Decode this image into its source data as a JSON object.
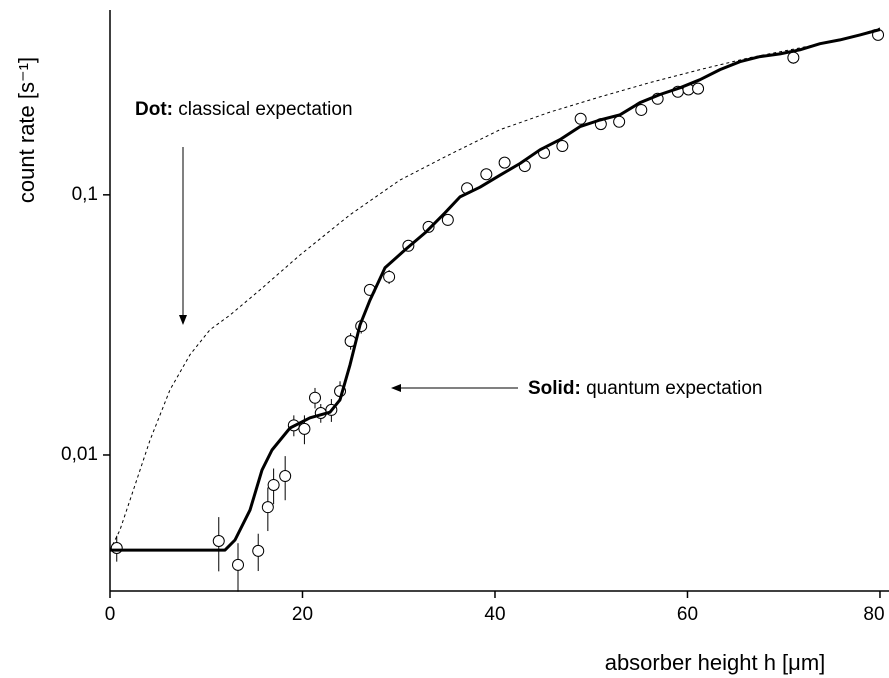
{
  "chart_data": {
    "type": "scatter",
    "xlabel": "absorber height h [μm]",
    "ylabel": "count rate [s⁻¹]",
    "yscale": "log",
    "xlim": [
      0,
      81
    ],
    "ylim": [
      0.003,
      0.5
    ],
    "xticks": [
      0,
      20,
      40,
      60,
      80
    ],
    "yticks": [
      {
        "value": 0.01,
        "label": "0,01"
      },
      {
        "value": 0.1,
        "label": "0,1"
      }
    ],
    "annotations": [
      {
        "bold": "Dot:",
        "text": "classical expectation"
      },
      {
        "bold": "Solid:",
        "text": "quantum expectation"
      }
    ],
    "series": [
      {
        "kind": "points",
        "color": "#000000",
        "x": [
          0.7,
          11.3,
          13.3,
          15.4,
          16.4,
          17.0,
          18.2,
          19.1,
          20.2,
          21.3,
          21.9,
          23.0,
          23.9,
          25.0,
          26.1,
          27.0,
          29.0,
          31.0,
          33.1,
          35.1,
          37.1,
          39.1,
          41.0,
          43.1,
          45.1,
          47.0,
          48.9,
          51.0,
          52.9,
          55.2,
          56.9,
          59.0,
          60.1,
          61.1,
          71.0,
          79.8
        ],
        "values": [
          0.00439,
          0.00467,
          0.00378,
          0.00428,
          0.0063,
          0.00767,
          0.0083,
          0.013,
          0.0126,
          0.0166,
          0.0145,
          0.0149,
          0.0176,
          0.0274,
          0.0313,
          0.0431,
          0.0484,
          0.0637,
          0.0753,
          0.0801,
          0.106,
          0.12,
          0.133,
          0.129,
          0.145,
          0.154,
          0.196,
          0.187,
          0.191,
          0.212,
          0.234,
          0.249,
          0.254,
          0.256,
          0.337,
          0.412
        ],
        "errors": [
          0.0005,
          0.0011,
          0.0008,
          0.0007,
          0.0012,
          0.0012,
          0.0016,
          0.0012,
          0.0016,
          0.0015,
          0.0012,
          0.0015,
          0.0016,
          0.002,
          0.002,
          0.002,
          0.003,
          0.003,
          0.003,
          0.004,
          0.004,
          0.004,
          0.005,
          0.005,
          0.006,
          0.006,
          0.007,
          0.008,
          0.009,
          0.01,
          0.01,
          0.012,
          0.012,
          0.013,
          0.018,
          0.02
        ]
      },
      {
        "kind": "solid",
        "color": "#000000",
        "x": [
          0,
          11.95,
          12.99,
          14.55,
          15.79,
          16.83,
          18.7,
          20.78,
          22.86,
          23.9,
          24.94,
          25.97,
          27.01,
          28.57,
          30.65,
          32.73,
          34.81,
          36.36,
          38.44,
          40.52,
          42.6,
          44.68,
          46.75,
          48.83,
          50.91,
          52.99,
          55.06,
          57.14,
          59.22,
          61.3,
          63.38,
          65.45,
          67.53,
          69.61,
          71.69,
          73.77,
          75.84,
          77.92,
          80
        ],
        "values": [
          0.00431,
          0.00431,
          0.00471,
          0.00614,
          0.00875,
          0.01045,
          0.0127,
          0.0139,
          0.0146,
          0.0163,
          0.0222,
          0.0316,
          0.0394,
          0.0524,
          0.0614,
          0.0714,
          0.0853,
          0.0982,
          0.107,
          0.119,
          0.132,
          0.149,
          0.163,
          0.183,
          0.194,
          0.203,
          0.226,
          0.243,
          0.258,
          0.277,
          0.303,
          0.325,
          0.34,
          0.348,
          0.361,
          0.381,
          0.394,
          0.412,
          0.432
        ]
      },
      {
        "kind": "dotted",
        "color": "#000000",
        "x": [
          0,
          1.04,
          2.08,
          4.16,
          6.23,
          8.31,
          10.39,
          12.47,
          15.58,
          19.74,
          24.94,
          30.13,
          35.32,
          40.52,
          45.71,
          50.91,
          56.1,
          61.3,
          66.49,
          71.69,
          76.88,
          80
        ],
        "values": [
          0.0043,
          0.00515,
          0.00671,
          0.0114,
          0.0178,
          0.0243,
          0.0303,
          0.0345,
          0.0431,
          0.0587,
          0.0838,
          0.114,
          0.143,
          0.178,
          0.208,
          0.238,
          0.27,
          0.303,
          0.337,
          0.367,
          0.402,
          0.438
        ]
      }
    ]
  }
}
